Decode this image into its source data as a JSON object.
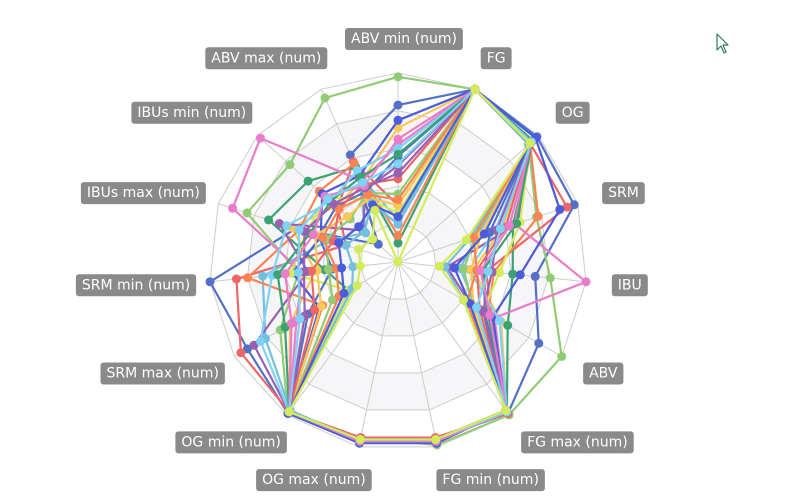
{
  "chart_data": {
    "type": "radar",
    "title": "",
    "indicators": [
      "ABV min (num)",
      "FG",
      "OG",
      "SRM",
      "IBU",
      "ABV",
      "FG max (num)",
      "FG min (num)",
      "OG max (num)",
      "OG min (num)",
      "SRM max (num)",
      "SRM min (num)",
      "IBUs max (num)",
      "IBUs min (num)",
      "ABV max (num)"
    ],
    "rings": 5,
    "grid_colors": [
      "#f6f6f8",
      "#ffffff"
    ],
    "split_line_color": "#cccccc",
    "series_colors": [
      "#5470c6",
      "#91cc75",
      "#fac858",
      "#ee6666",
      "#73c0de",
      "#3ba272",
      "#fc8452",
      "#9a60b4",
      "#ea7ccc",
      "#4a5bdc",
      "#7ed3f4",
      "#d4ec59"
    ],
    "series": [
      {
        "values": [
          0.83,
          1.0,
          0.99,
          0.98,
          0.73,
          0.86,
          0.99,
          0.96,
          0.97,
          0.99,
          0.92,
          1.0,
          0.57,
          0.14,
          0.62
        ]
      },
      {
        "values": [
          0.98,
          1.0,
          0.93,
          0.77,
          0.81,
          1.0,
          1.0,
          0.99,
          0.95,
          0.99,
          0.72,
          0.53,
          0.84,
          0.77,
          0.95
        ]
      },
      {
        "values": [
          0.71,
          1.0,
          0.95,
          0.58,
          0.4,
          0.63,
          0.98,
          0.96,
          0.96,
          0.98,
          0.66,
          0.44,
          0.59,
          0.44,
          0.47
        ]
      },
      {
        "values": [
          0.3,
          1.0,
          0.94,
          0.94,
          0.47,
          0.57,
          0.99,
          0.95,
          0.95,
          0.98,
          0.96,
          0.86,
          0.29,
          0.43,
          0.58
        ]
      },
      {
        "values": [
          0.22,
          1.0,
          0.93,
          0.44,
          0.33,
          0.48,
          0.97,
          0.96,
          0.97,
          0.97,
          0.81,
          0.72,
          0.38,
          0.23,
          0.51
        ]
      },
      {
        "values": [
          0.1,
          1.0,
          0.96,
          0.64,
          0.61,
          0.67,
          0.98,
          0.97,
          0.97,
          0.99,
          0.3,
          0.39,
          0.72,
          0.64,
          0.55
        ]
      },
      {
        "values": [
          0.14,
          1.0,
          0.94,
          0.78,
          0.51,
          0.55,
          0.97,
          0.96,
          0.96,
          0.99,
          0.46,
          0.8,
          0.55,
          0.56,
          0.57
        ]
      },
      {
        "values": [
          0.51,
          1.0,
          0.95,
          0.67,
          0.26,
          0.44,
          0.98,
          0.96,
          0.96,
          0.98,
          0.88,
          0.48,
          0.66,
          0.25,
          0.42
        ]
      },
      {
        "values": [
          0.62,
          1.0,
          0.94,
          0.65,
          1.0,
          0.59,
          0.97,
          0.97,
          0.96,
          0.98,
          0.62,
          0.51,
          0.92,
          0.98,
          0.47
        ]
      },
      {
        "values": [
          0.75,
          1.0,
          0.98,
          0.9,
          0.65,
          0.58,
          0.97,
          0.98,
          0.98,
          0.99,
          0.48,
          0.56,
          0.43,
          0.54,
          0.5
        ]
      },
      {
        "values": [
          0.6,
          1.0,
          0.95,
          0.54,
          0.38,
          0.62,
          0.98,
          0.96,
          0.97,
          0.98,
          0.84,
          0.67,
          0.62,
          0.48,
          0.53
        ]
      },
      {
        "values": [
          0.26,
          1.0,
          0.94,
          0.68,
          0.54,
          0.52,
          0.98,
          0.97,
          0.96,
          0.98,
          0.3,
          0.57,
          0.51,
          0.51,
          0.36
        ]
      },
      {
        "values": [
          0.56,
          1.0,
          0.95,
          0.51,
          0.46,
          0.53,
          0.98,
          0.97,
          0.96,
          0.98,
          0.55,
          0.35,
          0.44,
          0.44,
          0.41
        ]
      },
      {
        "values": [
          0.36,
          1.0,
          0.94,
          0.43,
          0.35,
          0.45,
          0.97,
          0.96,
          0.96,
          0.98,
          0.4,
          0.37,
          0.4,
          0.34,
          0.4
        ]
      },
      {
        "values": [
          0.3,
          1.0,
          0.94,
          0.46,
          0.39,
          0.46,
          0.97,
          0.96,
          0.96,
          0.98,
          0.47,
          0.43,
          0.46,
          0.36,
          0.37
        ]
      },
      {
        "values": [
          0.44,
          1.0,
          0.94,
          0.6,
          0.42,
          0.5,
          0.98,
          0.96,
          0.96,
          0.98,
          0.51,
          0.46,
          0.36,
          0.42,
          0.45
        ]
      },
      {
        "values": [
          0.2,
          1.0,
          0.94,
          0.4,
          0.25,
          0.4,
          0.97,
          0.96,
          0.96,
          0.98,
          0.28,
          0.24,
          0.29,
          0.24,
          0.34
        ]
      },
      {
        "values": [
          0.57,
          1.0,
          0.95,
          0.66,
          0.45,
          0.55,
          0.98,
          0.96,
          0.97,
          0.98,
          0.69,
          0.64,
          0.49,
          0.48,
          0.49
        ]
      },
      {
        "values": [
          0.33,
          1.0,
          0.94,
          0.42,
          0.42,
          0.42,
          0.97,
          0.96,
          0.96,
          0.98,
          0.36,
          0.33,
          0.42,
          0.42,
          0.39
        ]
      },
      {
        "values": [
          0.47,
          1.0,
          0.95,
          0.55,
          0.5,
          0.52,
          0.98,
          0.96,
          0.96,
          0.98,
          0.57,
          0.5,
          0.52,
          0.46,
          0.43
        ]
      },
      {
        "values": [
          0.65,
          1.0,
          0.95,
          0.62,
          0.44,
          0.56,
          0.98,
          0.97,
          0.97,
          0.98,
          0.65,
          0.6,
          0.47,
          0.52,
          0.44
        ]
      },
      {
        "values": [
          0.24,
          1.0,
          0.94,
          0.48,
          0.3,
          0.44,
          0.97,
          0.96,
          0.96,
          0.98,
          0.33,
          0.3,
          0.33,
          0.28,
          0.33
        ]
      },
      {
        "values": [
          0.52,
          1.0,
          0.95,
          0.57,
          0.48,
          0.48,
          0.98,
          0.96,
          0.96,
          0.98,
          0.6,
          0.53,
          0.55,
          0.5,
          0.46
        ]
      },
      {
        "values": [
          0.0,
          1.0,
          0.94,
          0.38,
          0.22,
          0.4,
          0.97,
          0.96,
          0.96,
          0.98,
          0.25,
          0.2,
          0.22,
          0.18,
          0.3
        ]
      }
    ]
  },
  "cursor": {
    "icon": "mouse-pointer-icon"
  }
}
